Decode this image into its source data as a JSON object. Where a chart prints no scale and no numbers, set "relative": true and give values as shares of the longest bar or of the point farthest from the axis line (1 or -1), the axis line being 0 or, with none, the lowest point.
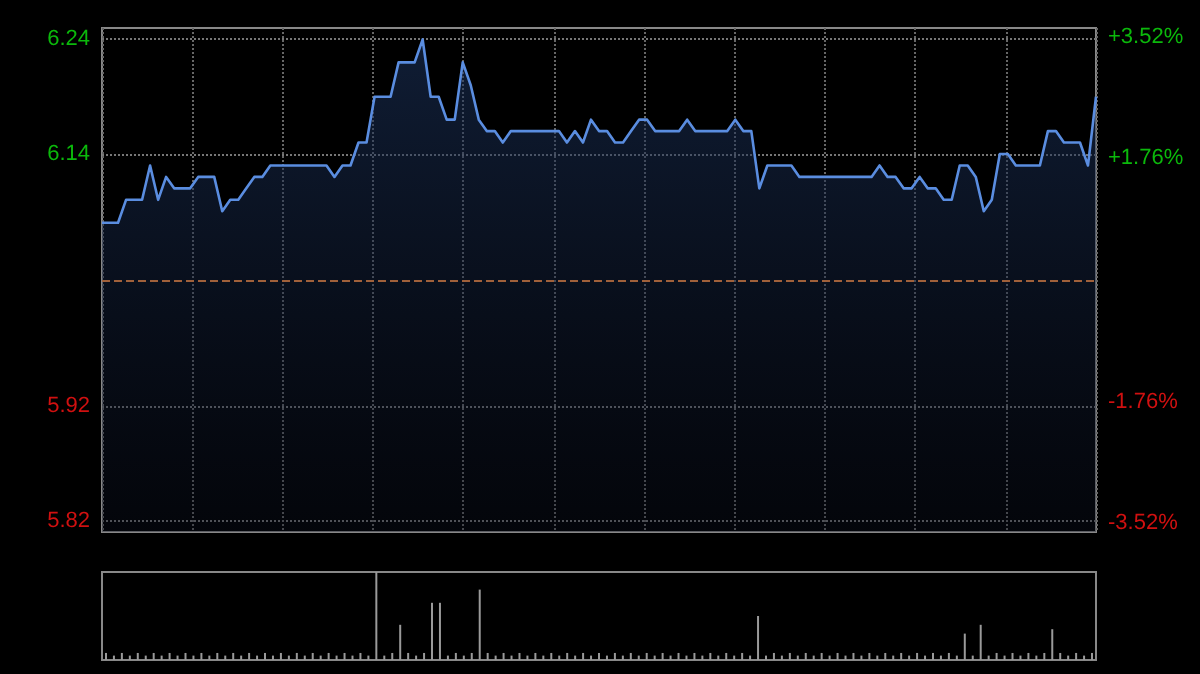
{
  "chart_data": [
    {
      "type": "area",
      "categories": [
        null,
        null,
        null,
        null,
        null,
        null,
        null,
        null,
        null,
        null,
        null,
        null,
        null,
        null,
        null,
        null,
        null,
        null,
        null,
        null,
        null,
        null,
        null,
        null,
        null,
        null,
        null,
        null,
        null,
        null,
        null,
        null,
        null,
        null,
        null,
        null,
        null,
        null,
        null,
        null,
        null,
        null,
        null,
        null,
        null,
        null,
        null,
        null,
        null,
        null,
        null,
        null,
        null,
        null,
        null,
        null,
        null,
        null,
        null,
        null,
        null,
        null,
        null,
        null,
        null,
        null,
        null,
        null,
        null,
        null,
        null,
        null,
        null,
        null,
        null,
        null,
        null,
        null,
        null,
        null,
        null,
        null,
        null,
        null,
        null,
        null,
        null,
        null,
        null,
        null,
        null,
        null,
        null,
        null,
        null,
        null,
        null,
        null,
        null,
        null,
        null,
        null,
        null,
        null,
        null,
        null,
        null,
        null,
        null,
        null,
        null,
        null,
        null,
        null,
        null,
        null,
        null,
        null,
        null,
        null,
        null,
        null,
        null,
        null,
        null
      ],
      "series": [
        {
          "color": "#5a8de0",
          "values": [
            6.08,
            6.08,
            6.08,
            6.1,
            6.1,
            6.1,
            6.13,
            6.1,
            6.12,
            6.11,
            6.11,
            6.11,
            6.12,
            6.12,
            6.12,
            6.09,
            6.1,
            6.1,
            6.11,
            6.12,
            6.12,
            6.13,
            6.13,
            6.13,
            6.13,
            6.13,
            6.13,
            6.13,
            6.13,
            6.12,
            6.13,
            6.13,
            6.15,
            6.15,
            6.19,
            6.19,
            6.19,
            6.22,
            6.22,
            6.22,
            6.24,
            6.19,
            6.19,
            6.17,
            6.17,
            6.22,
            6.2,
            6.17,
            6.16,
            6.16,
            6.15,
            6.16,
            6.16,
            6.16,
            6.16,
            6.16,
            6.16,
            6.16,
            6.15,
            6.16,
            6.15,
            6.17,
            6.16,
            6.16,
            6.15,
            6.15,
            6.16,
            6.17,
            6.17,
            6.16,
            6.16,
            6.16,
            6.16,
            6.17,
            6.16,
            6.16,
            6.16,
            6.16,
            6.16,
            6.17,
            6.16,
            6.16,
            6.11,
            6.13,
            6.13,
            6.13,
            6.13,
            6.12,
            6.12,
            6.12,
            6.12,
            6.12,
            6.12,
            6.12,
            6.12,
            6.12,
            6.12,
            6.13,
            6.12,
            6.12,
            6.11,
            6.11,
            6.12,
            6.11,
            6.11,
            6.1,
            6.1,
            6.13,
            6.13,
            6.12,
            6.09,
            6.1,
            6.14,
            6.14,
            6.13,
            6.13,
            6.13,
            6.13,
            6.16,
            6.16,
            6.15,
            6.15,
            6.15,
            6.13,
            6.19
          ]
        }
      ],
      "ylim": [
        5.81,
        6.25
      ],
      "yticks": [
        5.82,
        5.92,
        6.14,
        6.24
      ],
      "y2lim": [
        -3.65,
        3.65
      ],
      "y2ticks": [
        {
          "value": -3.52,
          "label": "-3.52%"
        },
        {
          "value": -1.76,
          "label": "-1.76%"
        },
        {
          "value": 1.76,
          "label": "+1.76%"
        },
        {
          "value": 3.52,
          "label": "+3.52%"
        }
      ],
      "ref_lines": [
        {
          "axis": "y",
          "value": 6.03,
          "color": "#a0603a",
          "line_style": "dashed"
        }
      ],
      "grid": true,
      "tick_labels": "y"
    },
    {
      "type": "bar",
      "relative": true,
      "categories": [
        null,
        null,
        null,
        null,
        null,
        null,
        null,
        null,
        null,
        null,
        null,
        null,
        null,
        null,
        null,
        null,
        null,
        null,
        null,
        null,
        null,
        null,
        null,
        null,
        null,
        null,
        null,
        null,
        null,
        null,
        null,
        null,
        null,
        null,
        null,
        null,
        null,
        null,
        null,
        null,
        null,
        null,
        null,
        null,
        null,
        null,
        null,
        null,
        null,
        null,
        null,
        null,
        null,
        null,
        null,
        null,
        null,
        null,
        null,
        null,
        null,
        null,
        null,
        null,
        null,
        null,
        null,
        null,
        null,
        null,
        null,
        null,
        null,
        null,
        null,
        null,
        null,
        null,
        null,
        null,
        null,
        null,
        null,
        null,
        null,
        null,
        null,
        null,
        null,
        null,
        null,
        null,
        null,
        null,
        null,
        null,
        null,
        null,
        null,
        null,
        null,
        null,
        null,
        null,
        null,
        null,
        null,
        null,
        null,
        null,
        null,
        null,
        null,
        null,
        null,
        null,
        null,
        null,
        null,
        null,
        null,
        null,
        null,
        null,
        null
      ],
      "series": [
        {
          "color": "#9a9a9a",
          "values": [
            0.08,
            0.05,
            0.08,
            0.05,
            0.08,
            0.05,
            0.08,
            0.05,
            0.08,
            0.05,
            0.08,
            0.05,
            0.08,
            0.05,
            0.08,
            0.05,
            0.08,
            0.05,
            0.08,
            0.05,
            0.08,
            0.05,
            0.08,
            0.05,
            0.08,
            0.05,
            0.08,
            0.05,
            0.08,
            0.05,
            0.08,
            0.05,
            0.08,
            0.05,
            1,
            0.05,
            0.08,
            0.4,
            0.08,
            0.05,
            0.08,
            0.65,
            0.65,
            0.05,
            0.08,
            0.05,
            0.08,
            0.8,
            0.08,
            0.05,
            0.08,
            0.05,
            0.08,
            0.05,
            0.08,
            0.05,
            0.08,
            0.05,
            0.08,
            0.05,
            0.08,
            0.05,
            0.08,
            0.05,
            0.08,
            0.05,
            0.08,
            0.05,
            0.08,
            0.05,
            0.08,
            0.05,
            0.08,
            0.05,
            0.08,
            0.05,
            0.08,
            0.05,
            0.08,
            0.05,
            0.08,
            0.05,
            0.5,
            0.05,
            0.08,
            0.05,
            0.08,
            0.05,
            0.08,
            0.05,
            0.08,
            0.05,
            0.08,
            0.05,
            0.08,
            0.05,
            0.08,
            0.05,
            0.08,
            0.05,
            0.08,
            0.05,
            0.08,
            0.05,
            0.08,
            0.05,
            0.08,
            0.05,
            0.3,
            0.05,
            0.4,
            0.05,
            0.08,
            0.05,
            0.08,
            0.05,
            0.08,
            0.05,
            0.08,
            0.35,
            0.08,
            0.05,
            0.08,
            0.05,
            0.08
          ]
        }
      ],
      "tick_labels": false
    }
  ]
}
